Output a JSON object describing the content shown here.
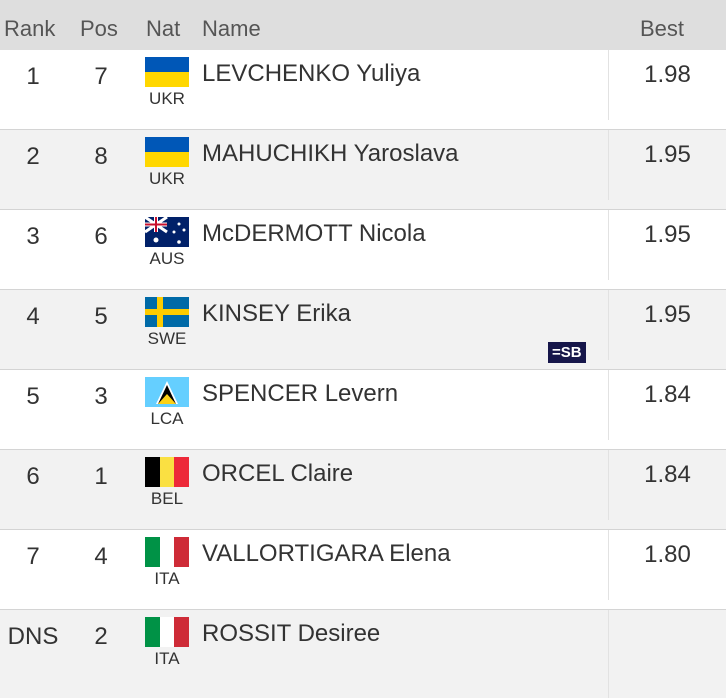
{
  "header": {
    "rank": "Rank",
    "pos": "Pos",
    "nat": "Nat",
    "name": "Name",
    "best": "Best"
  },
  "rows": [
    {
      "rank": "1",
      "pos": "7",
      "nat": "UKR",
      "name": "LEVCHENKO Yuliya",
      "best": "1.98"
    },
    {
      "rank": "2",
      "pos": "8",
      "nat": "UKR",
      "name": "MAHUCHIKH Yaroslava",
      "best": "1.95"
    },
    {
      "rank": "3",
      "pos": "6",
      "nat": "AUS",
      "name": "McDERMOTT Nicola",
      "best": "1.95"
    },
    {
      "rank": "4",
      "pos": "5",
      "nat": "SWE",
      "name": "KINSEY Erika",
      "best": "1.95",
      "note": "=SB"
    },
    {
      "rank": "5",
      "pos": "3",
      "nat": "LCA",
      "name": "SPENCER Levern",
      "best": "1.84"
    },
    {
      "rank": "6",
      "pos": "1",
      "nat": "BEL",
      "name": "ORCEL Claire",
      "best": "1.84"
    },
    {
      "rank": "7",
      "pos": "4",
      "nat": "ITA",
      "name": "VALLORTIGARA Elena",
      "best": "1.80"
    },
    {
      "rank": "DNS",
      "pos": "2",
      "nat": "ITA",
      "name": "ROSSIT Desiree"
    }
  ]
}
